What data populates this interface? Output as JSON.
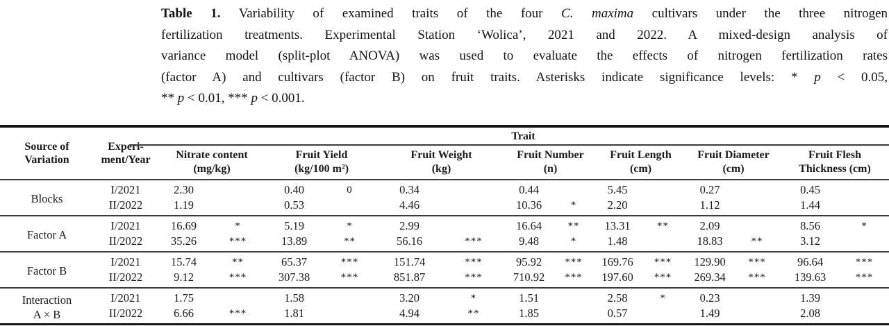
{
  "caption": {
    "lines": [
      {
        "runs": [
          {
            "t": "Table 1.",
            "b": true
          },
          {
            "t": " Variability of examined traits of the four "
          },
          {
            "t": "C. maxima",
            "i": true
          },
          {
            "t": " cultivars under the three nitrogen"
          }
        ]
      },
      {
        "runs": [
          {
            "t": "fertilization treatments. Experimental Station ‘Wolica’, 2021 and 2022. A mixed-design analysis of"
          }
        ]
      },
      {
        "runs": [
          {
            "t": "variance model (split-plot ANOVA) was used to evaluate the effects of nitrogen fertilization rates"
          }
        ]
      },
      {
        "runs": [
          {
            "t": "(factor A) and cultivars (factor B) on fruit traits. Asterisks indicate significance levels: * "
          },
          {
            "t": "p",
            "i": true
          },
          {
            "t": " < 0.05,"
          }
        ]
      },
      {
        "runs": [
          {
            "t": "** "
          },
          {
            "t": "p",
            "i": true
          },
          {
            "t": " < 0.01, *** "
          },
          {
            "t": "p",
            "i": true
          },
          {
            "t": " < 0.001."
          }
        ]
      }
    ]
  },
  "table": {
    "header": {
      "source": [
        "Source of",
        "Variation"
      ],
      "experiment": [
        "Experi-",
        "ment/Year"
      ],
      "trait_label": "Trait"
    },
    "traits": [
      {
        "name": "Nitrate content",
        "unit": "(mg/kg)"
      },
      {
        "name": "Fruit Yield",
        "unit": "(kg/100 m²)"
      },
      {
        "name": "Fruit Weight",
        "unit": "(kg)"
      },
      {
        "name": "Fruit Number",
        "unit": "(n)"
      },
      {
        "name": "Fruit Length",
        "unit": "(cm)"
      },
      {
        "name": "Fruit Diameter",
        "unit": "(cm)"
      },
      {
        "name": "Fruit Flesh",
        "unit": "Thickness (cm)"
      }
    ],
    "groups": [
      {
        "label": [
          "Blocks"
        ],
        "rows": [
          {
            "year": "I/2021",
            "cells": [
              [
                "2.30",
                ""
              ],
              [
                "0.40",
                "0"
              ],
              [
                "0.34",
                ""
              ],
              [
                "0.44",
                ""
              ],
              [
                "5.45",
                ""
              ],
              [
                "0.27",
                ""
              ],
              [
                "0.45",
                ""
              ]
            ]
          },
          {
            "year": "II/2022",
            "cells": [
              [
                "1.19",
                ""
              ],
              [
                "0.53",
                ""
              ],
              [
                "4.46",
                ""
              ],
              [
                "10.36",
                "*"
              ],
              [
                "2.20",
                ""
              ],
              [
                "1.12",
                ""
              ],
              [
                "1.44",
                ""
              ]
            ]
          }
        ]
      },
      {
        "label": [
          "Factor A"
        ],
        "rows": [
          {
            "year": "I/2021",
            "cells": [
              [
                "16.69",
                "*"
              ],
              [
                "5.19",
                "*"
              ],
              [
                "2.99",
                ""
              ],
              [
                "16.64",
                "**"
              ],
              [
                "13.31",
                "**"
              ],
              [
                "2.09",
                ""
              ],
              [
                "8.56",
                "*"
              ]
            ]
          },
          {
            "year": "II/2022",
            "cells": [
              [
                "35.26",
                "***"
              ],
              [
                "13.89",
                "**"
              ],
              [
                "56.16",
                "***"
              ],
              [
                "9.48",
                "*"
              ],
              [
                "1.48",
                ""
              ],
              [
                "18.83",
                "**"
              ],
              [
                "3.12",
                ""
              ]
            ]
          }
        ]
      },
      {
        "label": [
          "Factor B"
        ],
        "rows": [
          {
            "year": "I/2021",
            "cells": [
              [
                "15.74",
                "**"
              ],
              [
                "65.37",
                "***"
              ],
              [
                "151.74",
                "***"
              ],
              [
                "95.92",
                "***"
              ],
              [
                "169.76",
                "***"
              ],
              [
                "129.90",
                "***"
              ],
              [
                "96.64",
                "***"
              ]
            ]
          },
          {
            "year": "II/2022",
            "cells": [
              [
                "9.12",
                "***"
              ],
              [
                "307.38",
                "***"
              ],
              [
                "851.87",
                "***"
              ],
              [
                "710.92",
                "***"
              ],
              [
                "197.60",
                "***"
              ],
              [
                "269.34",
                "***"
              ],
              [
                "139.63",
                "***"
              ]
            ]
          }
        ]
      },
      {
        "label": [
          "Interaction",
          "A × B"
        ],
        "rows": [
          {
            "year": "I/2021",
            "cells": [
              [
                "1.75",
                ""
              ],
              [
                "1.58",
                ""
              ],
              [
                "3.20",
                "*"
              ],
              [
                "1.51",
                ""
              ],
              [
                "2.58",
                "*"
              ],
              [
                "0.23",
                ""
              ],
              [
                "1.39",
                ""
              ]
            ]
          },
          {
            "year": "II/2022",
            "cells": [
              [
                "6.66",
                "***"
              ],
              [
                "1.81",
                ""
              ],
              [
                "4.94",
                "**"
              ],
              [
                "1.85",
                ""
              ],
              [
                "0.57",
                ""
              ],
              [
                "1.49",
                ""
              ],
              [
                "2.08",
                ""
              ]
            ]
          }
        ]
      }
    ]
  },
  "colors": {
    "background": "#ffffff",
    "text": "#1b1b1b",
    "rule_heavy": "#141414",
    "rule_light": "#3d3d3d"
  }
}
